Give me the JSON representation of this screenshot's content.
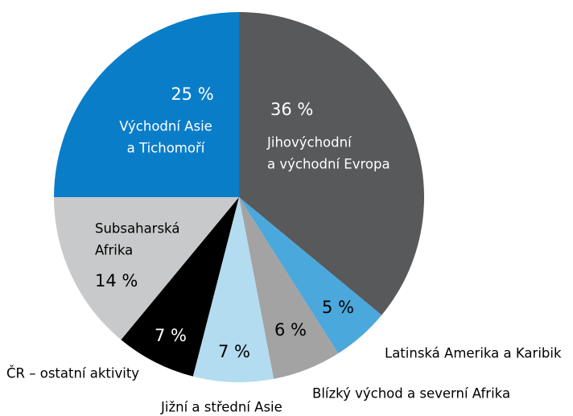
{
  "chart_data": {
    "type": "pie",
    "labels": [
      [
        "Jihovýchodní",
        "a východní Evropa"
      ],
      [
        "Latinská Amerika a Karibik"
      ],
      [
        "Blízký východ a severní Afrika"
      ],
      [
        "Jižní a střední Asie"
      ],
      [
        "ČR – ostatní aktivity"
      ],
      [
        "Subsaharská",
        "Afrika"
      ],
      [
        "Východní Asie",
        "a Tichomoří"
      ]
    ],
    "values": [
      36,
      5,
      6,
      7,
      7,
      14,
      25
    ],
    "value_labels": [
      "36 %",
      "5 %",
      "6 %",
      "7 %",
      "7 %",
      "14 %",
      "25 %"
    ],
    "colors": [
      "#58595b",
      "#4aa8dc",
      "#a3a3a4",
      "#b3dcf0",
      "#000000",
      "#c8c9ca",
      "#0a7dc8"
    ]
  }
}
